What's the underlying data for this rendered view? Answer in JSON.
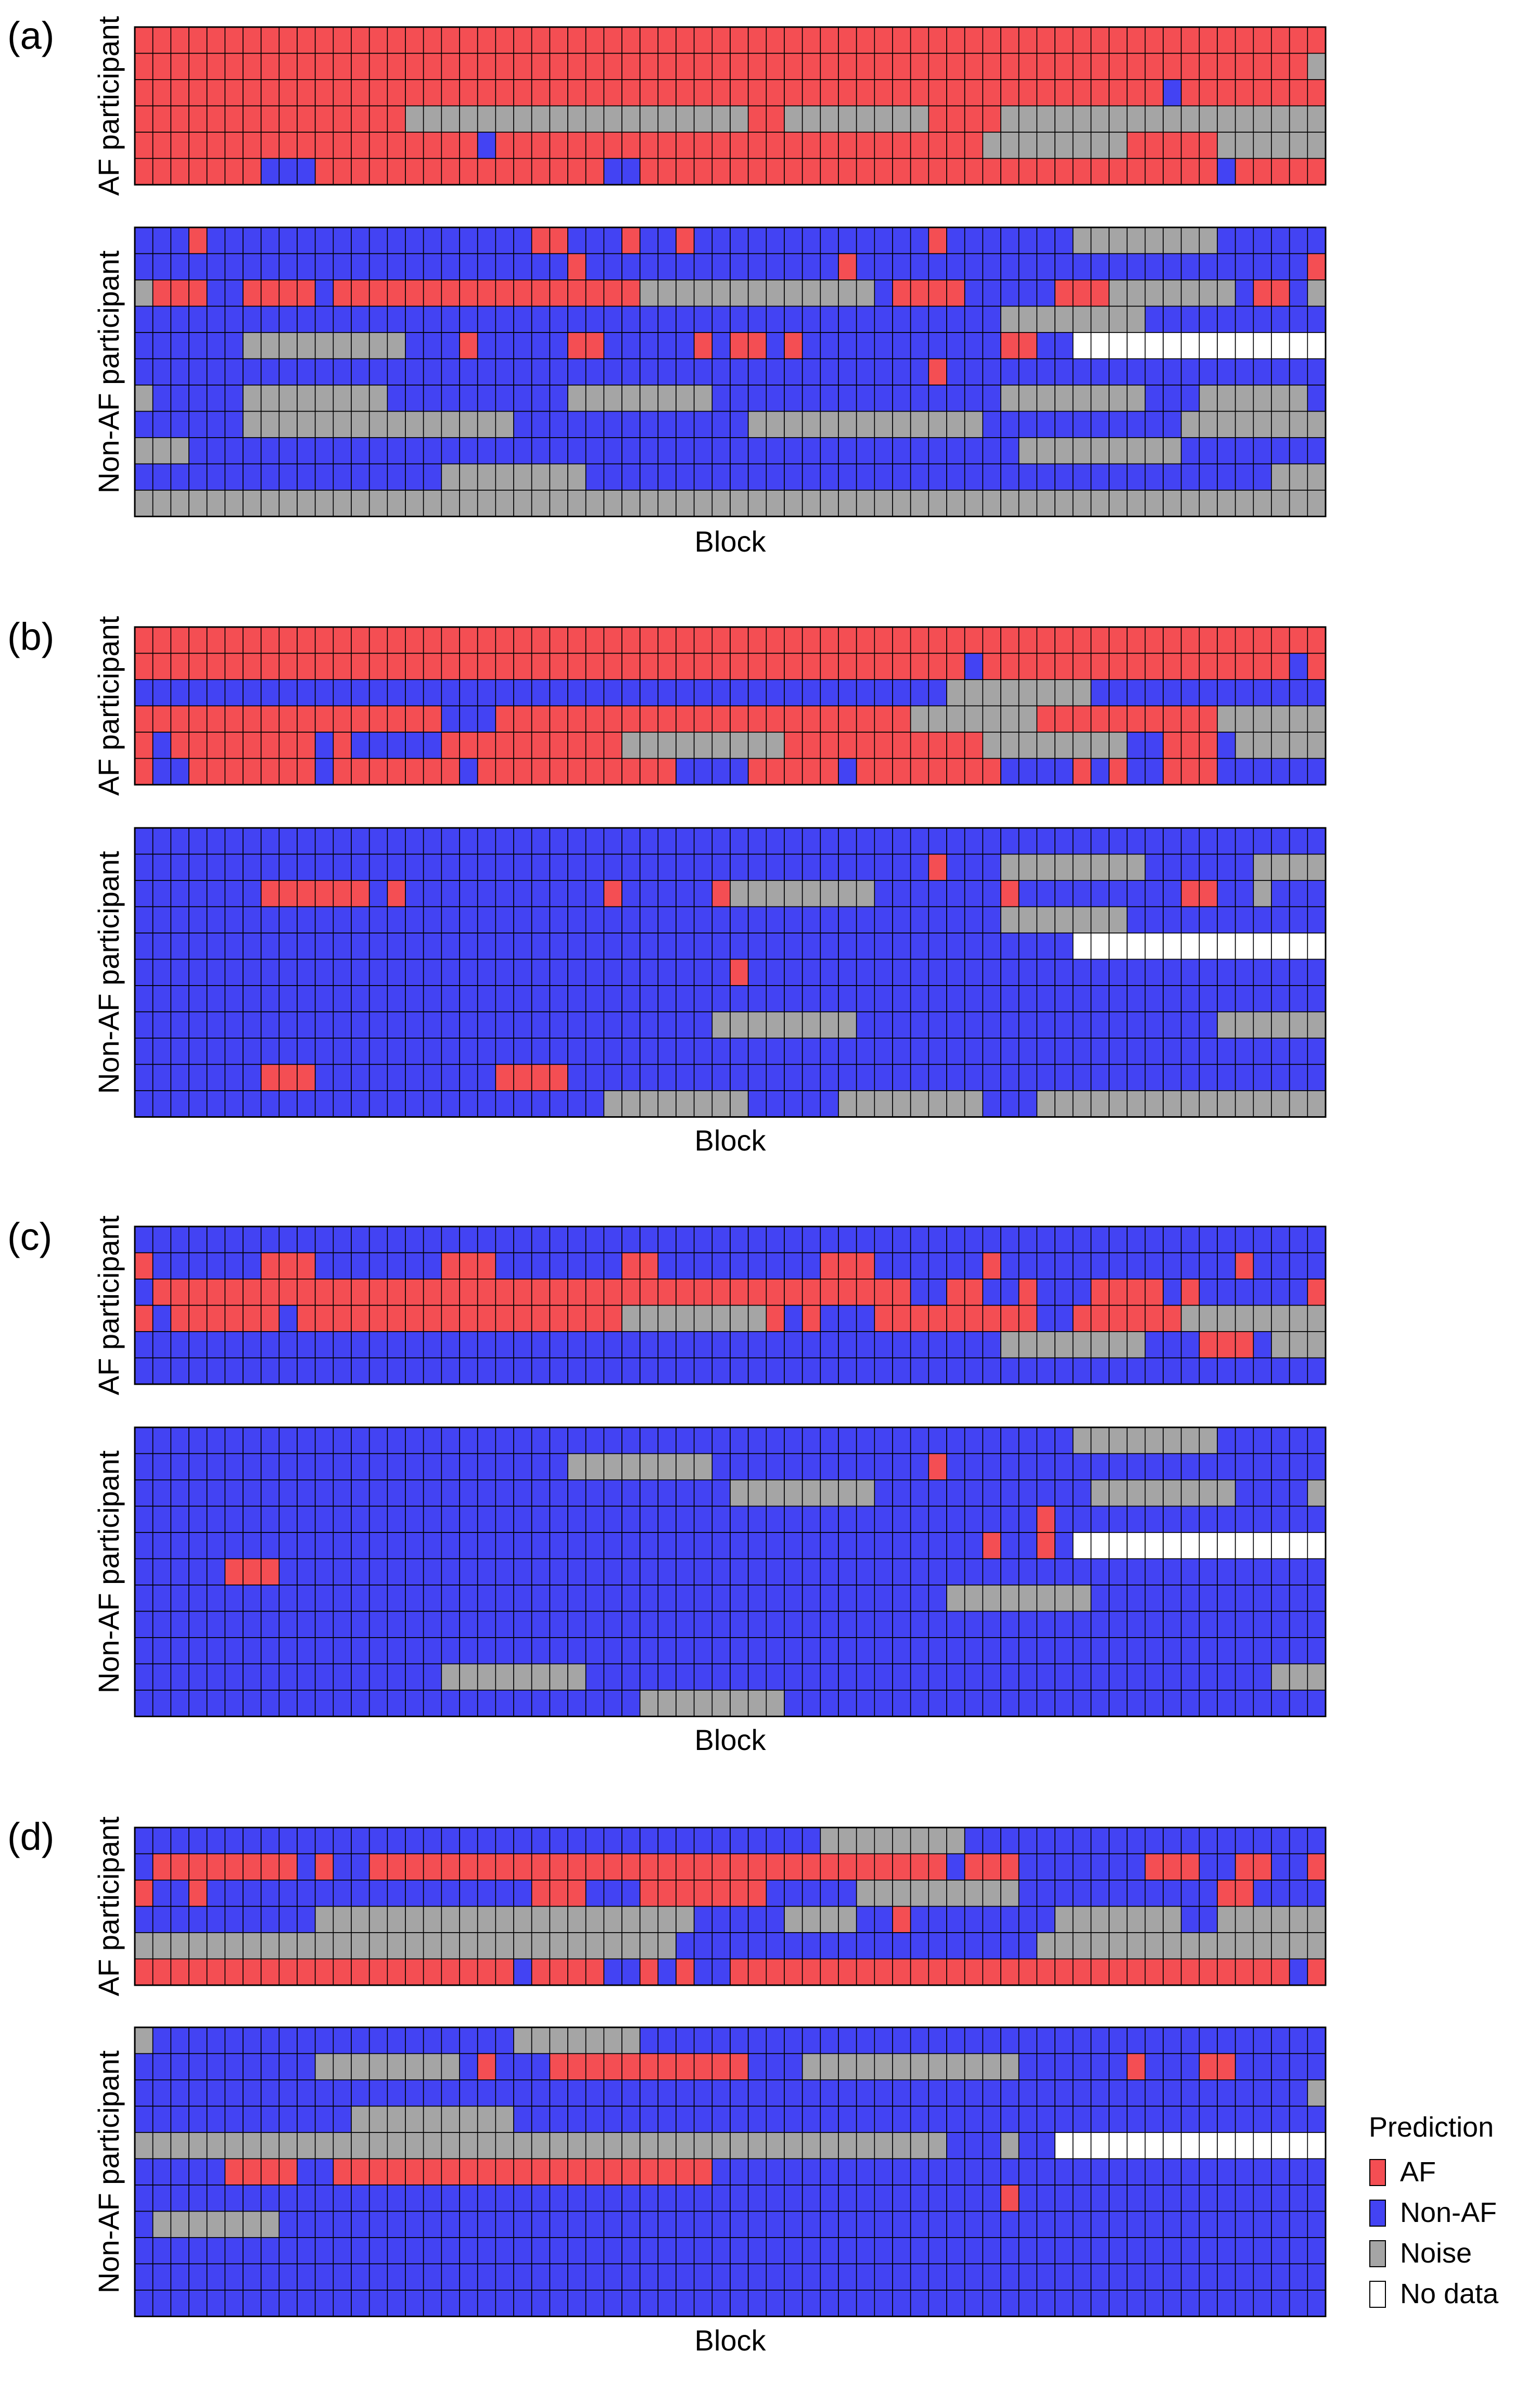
{
  "chart_data": {
    "type": "heatmap",
    "legend": {
      "title": "Prediction",
      "placement": "bottom-right",
      "entries": [
        {
          "label": "AF",
          "code": "A",
          "color": "#f44e53"
        },
        {
          "label": "Non-AF",
          "code": "N",
          "color": "#4343f3"
        },
        {
          "label": "Noise",
          "code": "X",
          "color": "#a5a5a5"
        },
        {
          "label": "No data",
          "code": "-",
          "color": "#ffffff"
        }
      ]
    },
    "panels": [
      {
        "label": "(a)",
        "xlabel": "Block",
        "groups": [
          {
            "ylabel": "AF participant",
            "rows": [
              "AAAAAAAAAAAAAAAAAAAAAAAAAAAAAAAAAAAAAAAAAAAAAAAAAAAAAAAAAAAAAAAAAA",
              "AAAAAAAAAAAAAAAAAAAAAAAAAAAAAAAAAAAAAAAAAAAAAAAAAAAAAAAAAAAAAAAAAX",
              "AAAAAAAAAAAAAAAAAAAAAAAAAAAAAAAAAAAAAAAAAAAAAAAAAAAAAAAAANAAAAAAAA",
              "AAAAAAAAAAAAAAAXXXXXXXXXXXXXXXXXXXAAXXXXXXXXAAAAXXXXXXXXXXXXXXXXXX",
              "AAAAAAAAAAAAAAAAAAANAAAAAAAAAAAAAAAAAAAAAAAAAAAXXXXXXXXAAAAAXXXXXX",
              "AAAAAAANNNAAAAAAAAAAAAAAAANNAAAAAAAAAAAAAAAAAAAAAAAAAAAAAAAANAAAAA"
            ]
          },
          {
            "ylabel": "Non-AF participant",
            "rows": [
              "NNNANNNNNNNNNNNNNNNNNNAANNNANNANNNNNNNNNNNNNANNNNNNNXXXXXXXXNNNNNN",
              "NNNNNNNNNNNNNNNNNNNNNNNNANNNNNNNNNNNNNNANNNNNNNNNNNNNNNNNNNNNNNNNA",
              "XAAANNAAAANAAAAAAAAAAAAAAAAAXXXXXXXXXXXXXNAAAANNNNNAAAXXXXXXXNAANX",
              "NNNNNNNNNNNNNNNNNNNNNNNNNNNNNNNNNNNNNNNNNNNNNNNNXXXXXXXXNNNNNNNNNN",
              "NNNNNNXXXXXXXXXNNNANNNNNAANNNNNANAANANNNNNNNNNNNAANN--------------",
              "NNNNNNNNNNNNNNNNNNNNNNNNNNNNNNNNNNNNNNNNNNNNANNNNNNNNNNNNNNNNNNNNN",
              "XNNNNNXXXXXXXXNNNNNNNNNNXXXXXXXXNNNNNNNNNNNNNNNNXXXXXXXXNNNXXXXXXN",
              "NNNNNNXXXXXXXXXXXXXXXNNNNNNNNNNNNNXXXXXXXXXXXXXNNNNNNNNNNNXXXXXXXX",
              "XXXNNNNNNNNNNNNNNNNNNNNNNNNNNNNNNNNNNNNNNNNNNNNNNXXXXXXXXXNNNNNNNN",
              "NNNNNNNNNNNNNNNNNXXXXXXXXNNNNNNNNNNNNNNNNNNNNNNNNNNNNNNNNNNNNNNXXX",
              "XXXXXXXXXXXXXXXXXXXXXXXXXXXXXXXXXXXXXXXXXXXXXXXXXXXXXXXXXXXXXXXXXX"
            ]
          }
        ]
      },
      {
        "label": "(b)",
        "xlabel": "Block",
        "groups": [
          {
            "ylabel": "AF participant",
            "rows": [
              "AAAAAAAAAAAAAAAAAAAAAAAAAAAAAAAAAAAAAAAAAAAAAAAAAAAAAAAAAAAAAAAAAA",
              "AAAAAAAAAAAAAAAAAAAAAAAAAAAAAAAAAAAAAAAAAAAAAANAAAAAAAAAAAAAAAAANA",
              "NNNNNNNNNNNNNNNNNNNNNNNNNNNNNNNNNNNNNNNNNNNNNXXXXXXXXNNNNNNNNNNNNN",
              "AAAAAAAAAAAAAAAAANNNAAAAAAAAAAAAAAAAAAAAAAAXXXXXXXAAAAAAAAAAXXXXXX",
              "ANAAAAAAAANANNNNNAAAAAAAAAAXXXXXXXXXAAAAAAAAAAAXXXXXXXXNNAAANXXXXX",
              "ANNAAAAAAANAAAAAAANAAAAAAAAAAANNNNAAAAANAAAAAAAANNNNANANNAAANNNNNN"
            ]
          },
          {
            "ylabel": "Non-AF participant",
            "rows": [
              "NNNNNNNNNNNNNNNNNNNNNNNNNNNNNNNNNNNNNNNNNNNNNNNNNNNNNNNNNNNNNNNNNN",
              "NNNNNNNNNNNNNNNNNNNNNNNNNNNNNNNNNNNNNNNNNNNNANNNXXXXXXXXNNNNNNXXXX",
              "NNNNNNNAAAAAANANNNNNNNNNNNANNNNNAXXXXXXXXNNNNNNNANNNNNNNNNAANNXN",
              "NNNNNNNNNNNNNNNNNNNNNNNNNNNNNNNNNNNNNNNNNNNNNNNNXXXXXXXNNNNNNNNNNN",
              "NNNNNNNNNNNNNNNNNNNNNNNNNNNNNNNNNNNNNNNNNNNNNNNNNNNN--------------",
              "NNNNNNNNNNNNNNNNNNNNNNNNNNNNNNNNNANNNNNNNNNNNNNNNNNNNNNNNNNNNNNNNN",
              "NNNNNNNNNNNNNNNNNNNNNNNNNNNNNNNNNNNNNNNNNNNNNNNNNNNNNNNNNNNNNNNNNN",
              "NNNNNNNNNNNNNNNNNNNNNNNNNNNNNNNNXXXXXXXXNNNNNNNNNNNNNNNNNNNNXXXXXX",
              "NNNNNNNNNNNNNNNNNNNNNNNNNNNNNNNNNNNNNNNNNNNNNNNNNNNNNNNNNNNNNNNNNN",
              "NNNNNNNAAANNNNNNNNNNAAAANNNNNNNNNNNNNNNNNNNNNNNNNNNNNNNNNNNNNNNNNN",
              "NNNNNNNNNNNNNNNNNNNNNNNNNNXXXXXXXXNNNNNXXXXXXXXNNNXXXXXXXXXXXXXXXX"
            ]
          }
        ]
      },
      {
        "label": "(c)",
        "xlabel": "Block",
        "groups": [
          {
            "ylabel": "AF participant",
            "rows": [
              "NNNNNNNNNNNNNNNNNNNNNNNNNNNNNNNNNNNNNNNNNNNNNNNNNNNNNNNNNNNNNNNNNN",
              "ANNNNNNAAANNNNNNNAAANNNNNNNAANNNNNNNNNAAANNNNNNANNNNNNNNNNNNNANNNN",
              "NAAAAAAAAAAAAAAAAAAAAAAAAAAAAAAAAAAAAAAAAAANNAANNANNNAAAANANNNNNNA",
              "ANAAAAAANAAAAAAAAAAAAAAAAAAXXXXXXXXANANNNAAAAAAAAANNAAAAAAXXXXXXXX",
              "NNNNNNNNNNNNNNNNNNNNNNNNNNNNNNNNNNNNNNNNNNNNNNNNXXXXXXXXNNNAAANXXXXX",
              "NNNNNNNNNNNNNNNNNNNNNNNNNNNNNNNNNNNNNNNNNNNNNNNNNNNNNNNNNNNNNNNNNN"
            ]
          },
          {
            "ylabel": "Non-AF participant",
            "rows": [
              "NNNNNNNNNNNNNNNNNNNNNNNNNNNNNNNNNNNNNNNNNNNNNNNNNNNNXXXXXXXXNNNNNN",
              "NNNNNNNNNNNNNNNNNNNNNNNNXXXXXXXXNNNNNNNNNNNNANNNNNNNNNNNNNNNNNNNNN",
              "NNNNNNNNNNNNNNNNNNNNNNNNNNNNNNNNNXXXXXXXXNNNNNNNNNNNNXXXXXXXXNNNNX",
              "NNNNNNNNNNNNNNNNNNNNNNNNNNNNNNNNNNNNNNNNNNNNNNNNNNANNNNNNNNNNNNNNN",
              "NNNNNNNNNNNNNNNNNNNNNNNNNNNNNNNNNNNNNNNNNNNNNNNANNAN--------------",
              "NNNNNAAANNNNNNNNNNNNNNNNNNNNNNNNNNNNNNNNNNNNNNNNNNNNNNNNNNNNNNNNNN",
              "NNNNNNNNNNNNNNNNNNNNNNNNNNNNNNNNNNNNNNNNNNNNNXXXXXXXXNNNNNNNNNNNNN",
              "NNNNNNNNNNNNNNNNNNNNNNNNNNNNNNNNNNNNNNNNNNNNNNNNNNNNNNNNNNNNNNNNNN",
              "NNNNNNNNNNNNNNNNNNNNNNNNNNNNNNNNNNNNNNNNNNNNNNNNNNNNNNNNNNNNNNNNNN",
              "NNNNNNNNNNNNNNNNNXXXXXXXXNNNNNNNNNNNNNNNNNNNNNNNNNNNNNNNNNNNNNNXXX",
              "NNNNNNNNNNNNNNNNNNNNNNNNNNNNXXXXXXXXNNNNNNNNNNNNNNNNNNNNNNNNNNNNNN"
            ]
          }
        ]
      },
      {
        "label": "(d)",
        "xlabel": "Block",
        "groups": [
          {
            "ylabel": "AF participant",
            "rows": [
              "NNNNNNNNNNNNNNNNNNNNNNNNNNNNNNNNNNNNNNXXXXXXXXNNNNNNNNNNNNNNNNNNNN",
              "NAAAAAAAANANNAAAAAAAAAAAAAAAAAAAAAAAAAAAAAAAANAAANNNNNNNAAANNAANNA",
              "ANNANNNNNNNNNNNNNNNNNNAAANNNAAAAAAANNNNNXXXXXXXXXNNNNNNNNNNNAANNNN",
              "NNNNNNNNNNXXXXXXXXXXXXXXXXXXXXXNNNNNXXXXNNANNNNNNNNXXXXXXXNNXXXXXX",
              "XXXXXXXXXXXXXXXXXXXXXXXXXXXXXXNNNNNNNNNNNNNNNNNNNNXXXXXXXXXXXXXXXX",
              "AAAAAAAAAAAAAAAAAAAAANAAAANNANANNAAAAAAAAAAAAAAAAAAAAAAAAAAAAAAANA"
            ]
          },
          {
            "ylabel": "Non-AF participant",
            "rows": [
              "XNNNNNNNNNNNNNNNNNNNNXXXXXXXNNNNNNNNNNNNNNNNNNNNNNNNNNNNNNNNNNNNNN",
              "NNNNNNNNNNXXXXXXXXNANNNAAAAAAAAAAANNNXXXXXXXXXXXXNNNNNNANNNAANNNNN",
              "NNNNNNNNNNNNNNNNNNNNNNNNNNNNNNNNNNNNNNNNNNNNNNNNNNNNNNNNNNNNNNNNNX",
              "NNNNNNNNNNNNXXXXXXXXXNNNNNNNNNNNNNNNNNNNNNNNNNNNNNNNNNNNNNNNNNNNNN",
              "XXXXXXXXXXXXXXXXXXXXXXXXXXXXXXXXXXXXXXXXXXXXXNNNXNN---------------",
              "NNNNNAAAANNAAAAAAAAAAAAAAAAAAAAANNNNNNNNNNNNNNNNNNNNNNNNNNNNNNNNNN",
              "NNNNNNNNNNNNNNNNNNNNNNNNNNNNNNNNNNNNNNNNNNNNNNNNANNNNNNNNNNNNNNNNN",
              "NXXXXXXXNNNNNNNNNNNNNNNNNNNNNNNNNNNNNNNNNNNNNNNNNNNNNNNNNNNNNNNNNN",
              "NNNNNNNNNNNNNNNNNNNNNNNNNNNNNNNNNNNNNNNNNNNNNNNNNNNNNNNNNNNNNNNNNN",
              "NNNNNNNNNNNNNNNNNNNNNNNNNNNNNNNNNNNNNNNNNNNNNNNNNNNNNNNNNNNNNNNNNN",
              "NNNNNNNNNNNNNNNNNNNNNNNNNNNNNNNNNNNNNNNNNNNNNNNNNNNNNNNNNNNNNNNNNN"
            ]
          }
        ]
      }
    ]
  }
}
